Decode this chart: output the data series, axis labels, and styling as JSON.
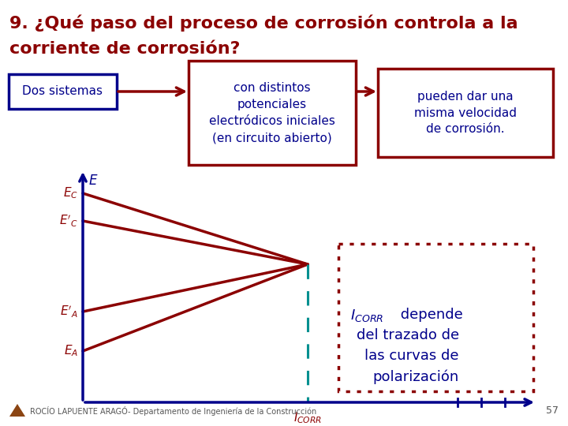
{
  "title_line1": "9. ¿Qué paso del proceso de corrosión controla a la",
  "title_line2": "corriente de corrosión?",
  "bg_color": "#ffffff",
  "title_color": "#8B0000",
  "axis_color": "#00008B",
  "line_color": "#8B0000",
  "dashed_color": "#009090",
  "box1_text": "Dos sistemas",
  "box1_text_color": "#00008B",
  "box1_edge_color": "#00008B",
  "box2_text": "con distintos\npotenciales\nelectródicos iniciales\n(en circuito abierto)",
  "box2_text_color": "#00008B",
  "box2_edge_color": "#8B0000",
  "box3_text": "pueden dar una\nmisma velocidad\nde corrosión.",
  "box3_text_color": "#00008B",
  "box3_edge_color": "#8B0000",
  "annot_box_edge": "#8B0000",
  "annot_text_color": "#00008B",
  "footer_text": "ROCÍO LAPUENTE ARAGÓ- Departamento de Ingeniería de la Construcción",
  "page_num": "57",
  "arrow_color": "#8B0000"
}
